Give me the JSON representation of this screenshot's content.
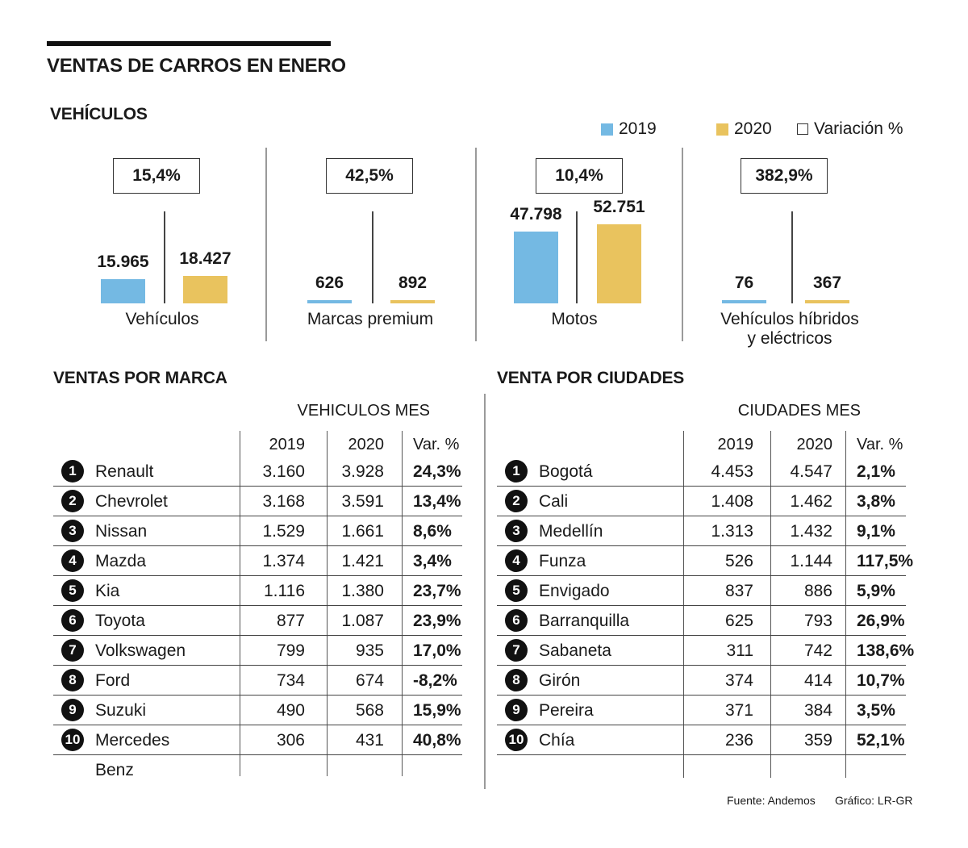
{
  "title": "VENTAS DE CARROS EN ENERO",
  "vehicles_section_title": "VEHÍCULOS",
  "legend": {
    "y2019": "2019",
    "y2020": "2020",
    "variation": "Variación %",
    "color_2019": "#74b9e3",
    "color_2020": "#e9c35e"
  },
  "chart_data": {
    "type": "bar",
    "series_names": [
      "2019",
      "2020"
    ],
    "panels": [
      {
        "label": "Vehículos",
        "label_line2": "",
        "v2019": 15965,
        "v2020": 18427,
        "v2019_text": "15.965",
        "v2020_text": "18.427",
        "variation": "15,4%"
      },
      {
        "label": "Marcas premium",
        "label_line2": "",
        "v2019": 626,
        "v2020": 892,
        "v2019_text": "626",
        "v2020_text": "892",
        "variation": "42,5%"
      },
      {
        "label": "Motos",
        "label_line2": "",
        "v2019": 47798,
        "v2020": 52751,
        "v2019_text": "47.798",
        "v2020_text": "52.751",
        "variation": "10,4%"
      },
      {
        "label": "Vehículos híbridos",
        "label_line2": "y eléctricos",
        "v2019": 76,
        "v2020": 367,
        "v2019_text": "76",
        "v2020_text": "367",
        "variation": "382,9%"
      }
    ]
  },
  "brands": {
    "title": "VENTAS POR MARCA",
    "header": "VEHICULOS MES",
    "cols": [
      "2019",
      "2020",
      "Var. %"
    ],
    "rows": [
      {
        "rank": "1",
        "name": "Renault",
        "y2019": "3.160",
        "y2020": "3.928",
        "var": "24,3%"
      },
      {
        "rank": "2",
        "name": "Chevrolet",
        "y2019": "3.168",
        "y2020": "3.591",
        "var": "13,4%"
      },
      {
        "rank": "3",
        "name": "Nissan",
        "y2019": "1.529",
        "y2020": "1.661",
        "var": "8,6%"
      },
      {
        "rank": "4",
        "name": "Mazda",
        "y2019": "1.374",
        "y2020": "1.421",
        "var": "3,4%"
      },
      {
        "rank": "5",
        "name": "Kia",
        "y2019": "1.116",
        "y2020": "1.380",
        "var": "23,7%"
      },
      {
        "rank": "6",
        "name": "Toyota",
        "y2019": "877",
        "y2020": "1.087",
        "var": "23,9%"
      },
      {
        "rank": "7",
        "name": "Volkswagen",
        "y2019": "799",
        "y2020": "935",
        "var": "17,0%"
      },
      {
        "rank": "8",
        "name": "Ford",
        "y2019": "734",
        "y2020": "674",
        "var": "-8,2%"
      },
      {
        "rank": "9",
        "name": "Suzuki",
        "y2019": "490",
        "y2020": "568",
        "var": "15,9%"
      },
      {
        "rank": "10",
        "name": "Mercedes Benz",
        "y2019": "306",
        "y2020": "431",
        "var": "40,8%"
      }
    ]
  },
  "cities": {
    "title": "VENTA POR CIUDADES",
    "header": "CIUDADES MES",
    "cols": [
      "2019",
      "2020",
      "Var. %"
    ],
    "rows": [
      {
        "rank": "1",
        "name": "Bogotá",
        "y2019": "4.453",
        "y2020": "4.547",
        "var": "2,1%"
      },
      {
        "rank": "2",
        "name": "Cali",
        "y2019": "1.408",
        "y2020": "1.462",
        "var": "3,8%"
      },
      {
        "rank": "3",
        "name": "Medellín",
        "y2019": "1.313",
        "y2020": "1.432",
        "var": "9,1%"
      },
      {
        "rank": "4",
        "name": "Funza",
        "y2019": "526",
        "y2020": "1.144",
        "var": "117,5%"
      },
      {
        "rank": "5",
        "name": "Envigado",
        "y2019": "837",
        "y2020": "886",
        "var": "5,9%"
      },
      {
        "rank": "6",
        "name": "Barranquilla",
        "y2019": "625",
        "y2020": "793",
        "var": "26,9%"
      },
      {
        "rank": "7",
        "name": "Sabaneta",
        "y2019": "311",
        "y2020": "742",
        "var": "138,6%"
      },
      {
        "rank": "8",
        "name": "Girón",
        "y2019": "374",
        "y2020": "414",
        "var": "10,7%"
      },
      {
        "rank": "9",
        "name": "Pereira",
        "y2019": "371",
        "y2020": "384",
        "var": "3,5%"
      },
      {
        "rank": "10",
        "name": "Chía",
        "y2019": "236",
        "y2020": "359",
        "var": "52,1%"
      }
    ]
  },
  "footer": {
    "source": "Fuente: Andemos",
    "graphic": "Gráfico: LR-GR"
  }
}
